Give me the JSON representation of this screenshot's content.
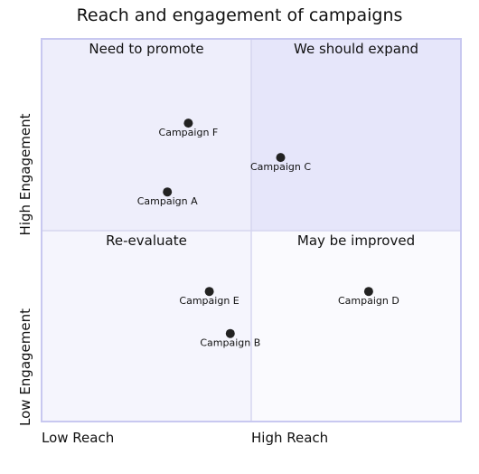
{
  "chart_data": {
    "type": "scatter",
    "title": "Reach and engagement of campaigns",
    "x_axis": {
      "low_label": "Low Reach",
      "high_label": "High Reach",
      "range": [
        0,
        1
      ]
    },
    "y_axis": {
      "low_label": "Low Engagement",
      "high_label": "High Engagement",
      "range": [
        0,
        1
      ]
    },
    "quadrants": [
      {
        "id": "top-left",
        "label": "Need to promote",
        "color": "#EEEEFB"
      },
      {
        "id": "top-right",
        "label": "We should expand",
        "color": "#E6E6FA"
      },
      {
        "id": "bottom-left",
        "label": "Re-evaluate",
        "color": "#F5F5FD"
      },
      {
        "id": "bottom-right",
        "label": "May be improved",
        "color": "#FAFAFE"
      }
    ],
    "points": [
      {
        "label": "Campaign A",
        "x": 0.3,
        "y": 0.6
      },
      {
        "label": "Campaign B",
        "x": 0.45,
        "y": 0.23
      },
      {
        "label": "Campaign C",
        "x": 0.57,
        "y": 0.69
      },
      {
        "label": "Campaign D",
        "x": 0.78,
        "y": 0.34
      },
      {
        "label": "Campaign E",
        "x": 0.4,
        "y": 0.34
      },
      {
        "label": "Campaign F",
        "x": 0.35,
        "y": 0.78
      }
    ],
    "colors": {
      "border": "#C8C8F0",
      "divider": "#D6D6F0",
      "point": "#222222",
      "text": "#111111"
    }
  }
}
